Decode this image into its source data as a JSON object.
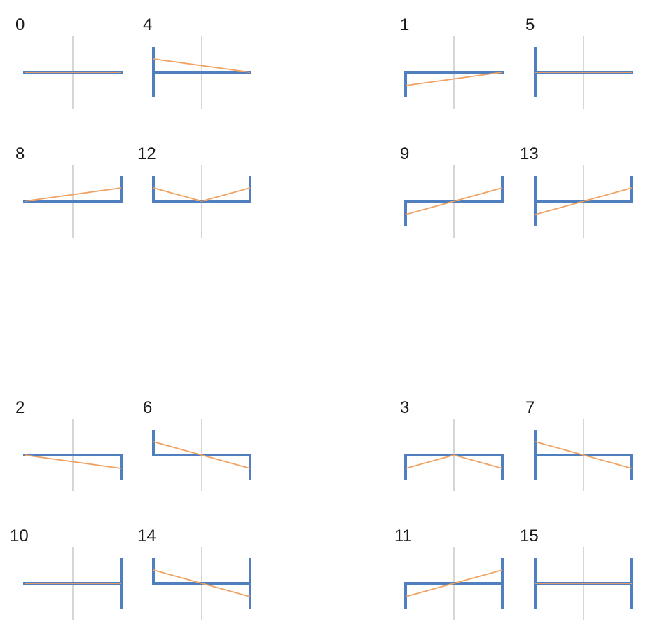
{
  "colors": {
    "axis": "#c8c8c8",
    "frame": "#4f7fbe",
    "line": "#f0a262",
    "background": "#ffffff"
  },
  "panels": [
    {
      "label": "0",
      "left": false,
      "right": false,
      "start": "center",
      "end": "center"
    },
    {
      "label": "4",
      "left": true,
      "right": false,
      "start": "up",
      "end": "center"
    },
    {
      "label": "1",
      "left": "down",
      "right": false,
      "start": "down",
      "end": "center"
    },
    {
      "label": "5",
      "left": true,
      "right": false,
      "start": "center",
      "end": "center"
    },
    {
      "label": "8",
      "left": false,
      "right": "up",
      "start": "center",
      "end": "up"
    },
    {
      "label": "12",
      "left": "up",
      "right": "up",
      "start": "up",
      "mid": "center",
      "end": "up"
    },
    {
      "label": "9",
      "left": "down",
      "right": "up",
      "start": "down",
      "end": "up"
    },
    {
      "label": "13",
      "left": true,
      "right": "up",
      "start": "down",
      "end": "up"
    },
    {
      "label": "2",
      "left": false,
      "right": "down",
      "start": "center",
      "end": "down"
    },
    {
      "label": "6",
      "left": "up",
      "right": "down",
      "start": "up",
      "end": "down"
    },
    {
      "label": "3",
      "left": "down",
      "right": "down",
      "start": "down",
      "mid": "center",
      "end": "down"
    },
    {
      "label": "7",
      "left": true,
      "right": "down",
      "start": "up",
      "end": "down"
    },
    {
      "label": "10",
      "left": false,
      "right": true,
      "start": "center",
      "end": "center"
    },
    {
      "label": "14",
      "left": "up",
      "right": true,
      "start": "up",
      "end": "down"
    },
    {
      "label": "11",
      "left": "down",
      "right": true,
      "start": "down",
      "end": "up"
    },
    {
      "label": "15",
      "left": true,
      "right": true,
      "start": "center",
      "end": "center"
    }
  ]
}
